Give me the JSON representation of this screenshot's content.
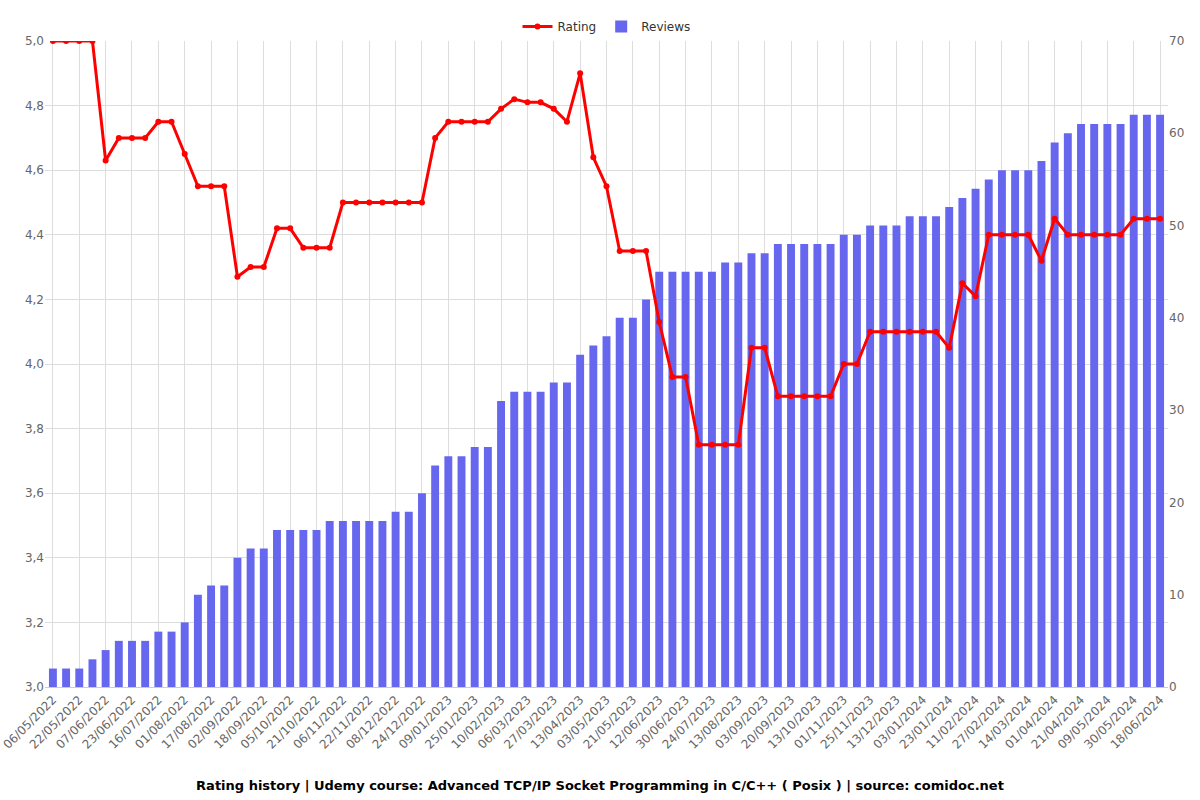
{
  "chart_data": {
    "type": "bar_line",
    "title": "Rating history | Udemy course: Advanced TCP/IP Socket Programming in C/C++ ( Posix ) | source: comidoc.net",
    "categories": [
      "06/05/2022",
      null,
      "22/05/2022",
      null,
      "07/06/2022",
      null,
      "23/06/2022",
      null,
      "16/07/2022",
      null,
      "01/08/2022",
      null,
      "17/08/2022",
      null,
      "02/09/2022",
      null,
      "18/09/2022",
      null,
      "05/10/2022",
      null,
      "21/10/2022",
      null,
      "06/11/2022",
      null,
      "22/11/2022",
      null,
      "08/12/2022",
      null,
      "24/12/2022",
      null,
      "09/01/2023",
      null,
      "25/01/2023",
      null,
      "10/02/2023",
      null,
      "06/03/2023",
      null,
      "27/03/2023",
      null,
      "13/04/2023",
      null,
      "03/05/2023",
      null,
      "21/05/2023",
      null,
      "12/06/2023",
      null,
      "30/06/2023",
      null,
      "24/07/2023",
      null,
      "13/08/2023",
      null,
      "03/09/2023",
      null,
      "20/09/2023",
      null,
      "13/10/2023",
      null,
      "01/11/2023",
      null,
      "25/11/2023",
      null,
      "13/12/2023",
      null,
      "03/01/2024",
      null,
      "23/01/2024",
      null,
      "11/02/2024",
      null,
      "27/02/2024",
      null,
      "14/03/2024",
      null,
      "01/04/2024",
      null,
      "21/04/2024",
      null,
      "09/05/2024",
      null,
      "30/05/2024",
      null,
      "18/06/2024"
    ],
    "series": [
      {
        "name": "Rating",
        "type": "line",
        "color": "#ff0000",
        "marker": "circle",
        "line_style": "solid",
        "values": [
          5.0,
          5.0,
          5.0,
          5.0,
          4.63,
          4.7,
          4.7,
          4.7,
          4.75,
          4.75,
          4.65,
          4.55,
          4.55,
          4.55,
          4.27,
          4.3,
          4.3,
          4.42,
          4.42,
          4.36,
          4.36,
          4.36,
          4.5,
          4.5,
          4.5,
          4.5,
          4.5,
          4.5,
          4.5,
          4.7,
          4.75,
          4.75,
          4.75,
          4.75,
          4.79,
          4.82,
          4.81,
          4.81,
          4.79,
          4.75,
          4.9,
          4.64,
          4.55,
          4.35,
          4.35,
          4.35,
          4.13,
          3.96,
          3.96,
          3.75,
          3.75,
          3.75,
          3.75,
          4.05,
          4.05,
          3.9,
          3.9,
          3.9,
          3.9,
          3.9,
          4.0,
          4.0,
          4.1,
          4.1,
          4.1,
          4.1,
          4.1,
          4.1,
          4.05,
          4.25,
          4.21,
          4.4,
          4.4,
          4.4,
          4.4,
          4.32,
          4.45,
          4.4,
          4.4,
          4.4,
          4.4,
          4.4,
          4.45,
          4.45,
          4.45
        ]
      },
      {
        "name": "Reviews",
        "type": "bar",
        "axis": "y2",
        "color": "#6666ee",
        "values": [
          2,
          2,
          2,
          3,
          4,
          5,
          5,
          5,
          6,
          6,
          7,
          10,
          11,
          11,
          14,
          15,
          15,
          17,
          17,
          17,
          17,
          18,
          18,
          18,
          18,
          18,
          19,
          19,
          21,
          24,
          25,
          25,
          26,
          26,
          31,
          32,
          32,
          32,
          33,
          33,
          36,
          37,
          38,
          40,
          40,
          42,
          45,
          45,
          45,
          45,
          45,
          46,
          46,
          47,
          47,
          48,
          48,
          48,
          48,
          48,
          49,
          49,
          50,
          50,
          50,
          51,
          51,
          51,
          52,
          53,
          54,
          55,
          56,
          56,
          56,
          57,
          59,
          60,
          61,
          61,
          61,
          61,
          62,
          62,
          62
        ]
      }
    ],
    "ylim": [
      3.0,
      5.0
    ],
    "yticks": [
      {
        "value": 3.0,
        "label": "3,0"
      },
      {
        "value": 3.2,
        "label": "3,2"
      },
      {
        "value": 3.4,
        "label": "3,4"
      },
      {
        "value": 3.6,
        "label": "3,6"
      },
      {
        "value": 3.8,
        "label": "3,8"
      },
      {
        "value": 4.0,
        "label": "4,0"
      },
      {
        "value": 4.2,
        "label": "4,2"
      },
      {
        "value": 4.4,
        "label": "4,4"
      },
      {
        "value": 4.6,
        "label": "4,6"
      },
      {
        "value": 4.8,
        "label": "4,8"
      },
      {
        "value": 5.0,
        "label": "5,0"
      }
    ],
    "y2lim": [
      0,
      70
    ],
    "y2ticks": [
      0,
      10,
      20,
      30,
      40,
      50,
      60,
      70
    ],
    "grid": true,
    "legend": "top"
  }
}
